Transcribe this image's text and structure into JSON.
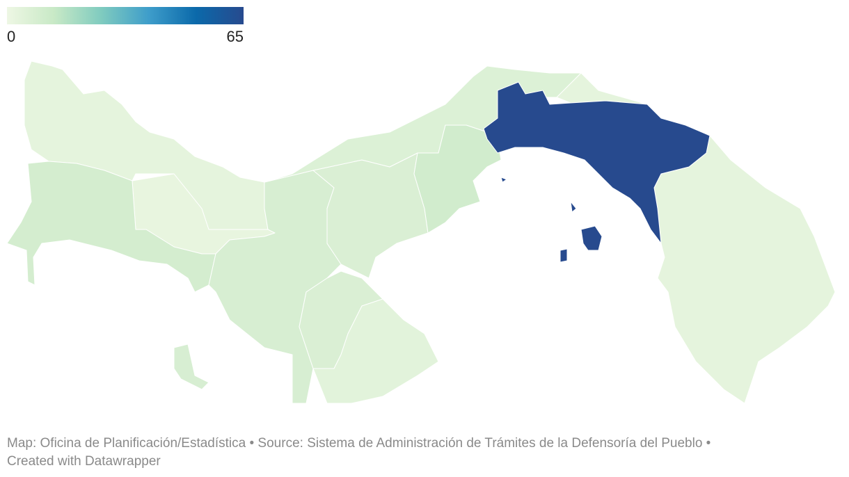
{
  "legend": {
    "min": 0,
    "max": 65,
    "colors": [
      "#eef7e4",
      "#c8e9c6",
      "#7fcbbf",
      "#3e9dca",
      "#0b69aa",
      "#274a8e"
    ]
  },
  "regions": {
    "values": [
      3,
      2,
      9,
      8,
      7,
      6,
      10,
      7,
      4,
      3,
      65
    ]
  },
  "footer": {
    "line1": "Map: Oficina de Planificación/Estadística • Source: Sistema de Administración de Trámites de la Defensoría del Pueblo •",
    "line2": "Created with Datawrapper"
  }
}
